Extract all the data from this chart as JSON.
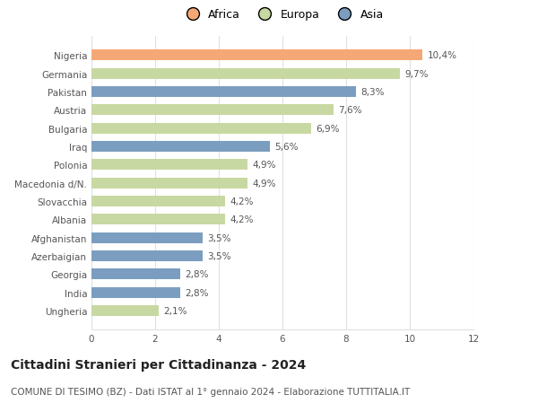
{
  "categories": [
    "Nigeria",
    "Germania",
    "Pakistan",
    "Austria",
    "Bulgaria",
    "Iraq",
    "Polonia",
    "Macedonia d/N.",
    "Slovacchia",
    "Albania",
    "Afghanistan",
    "Azerbaigian",
    "Georgia",
    "India",
    "Ungheria"
  ],
  "values": [
    10.4,
    9.7,
    8.3,
    7.6,
    6.9,
    5.6,
    4.9,
    4.9,
    4.2,
    4.2,
    3.5,
    3.5,
    2.8,
    2.8,
    2.1
  ],
  "labels": [
    "10,4%",
    "9,7%",
    "8,3%",
    "7,6%",
    "6,9%",
    "5,6%",
    "4,9%",
    "4,9%",
    "4,2%",
    "4,2%",
    "3,5%",
    "3,5%",
    "2,8%",
    "2,8%",
    "2,1%"
  ],
  "continents": [
    "Africa",
    "Europa",
    "Asia",
    "Europa",
    "Europa",
    "Asia",
    "Europa",
    "Europa",
    "Europa",
    "Europa",
    "Asia",
    "Asia",
    "Asia",
    "Asia",
    "Europa"
  ],
  "colors": {
    "Africa": "#F5A875",
    "Europa": "#C8D8A2",
    "Asia": "#7B9EC0"
  },
  "xlim": [
    0,
    12
  ],
  "xticks": [
    0,
    2,
    4,
    6,
    8,
    10,
    12
  ],
  "title": "Cittadini Stranieri per Cittadinanza - 2024",
  "subtitle": "COMUNE DI TESIMO (BZ) - Dati ISTAT al 1° gennaio 2024 - Elaborazione TUTTITALIA.IT",
  "background_color": "#ffffff",
  "bar_height": 0.6,
  "grid_color": "#e0e0e0",
  "title_fontsize": 10,
  "subtitle_fontsize": 7.5,
  "label_fontsize": 7.5,
  "tick_fontsize": 7.5,
  "legend_fontsize": 9
}
